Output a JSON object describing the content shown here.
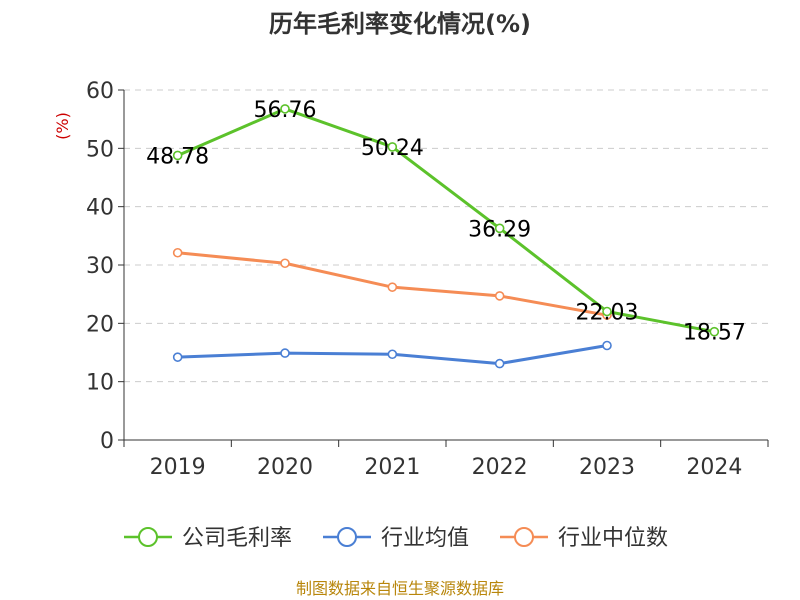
{
  "chart_data": {
    "type": "line",
    "title": "历年毛利率变化情况(%)",
    "ylabel": "(%)",
    "xlabel": "",
    "categories": [
      "2019",
      "2020",
      "2021",
      "2022",
      "2023",
      "2024"
    ],
    "ylim": [
      0,
      60
    ],
    "yticks": [
      0,
      10,
      20,
      30,
      40,
      50,
      60
    ],
    "grid": true,
    "legend_position": "bottom",
    "series": [
      {
        "name": "公司毛利率",
        "color": "#5cc22b",
        "values": [
          48.78,
          56.76,
          50.24,
          36.29,
          22.03,
          18.57
        ],
        "labels": [
          "48.78",
          "56.76",
          "50.24",
          "36.29",
          "22.03",
          "18.57"
        ]
      },
      {
        "name": "行业均值",
        "color": "#4a7fd4",
        "values": [
          14.2,
          14.9,
          14.7,
          13.1,
          16.2,
          null
        ]
      },
      {
        "name": "行业中位数",
        "color": "#f58c55",
        "values": [
          32.1,
          30.3,
          26.2,
          24.7,
          21.4,
          null
        ]
      }
    ]
  },
  "source_note": "制图数据来自恒生聚源数据库"
}
